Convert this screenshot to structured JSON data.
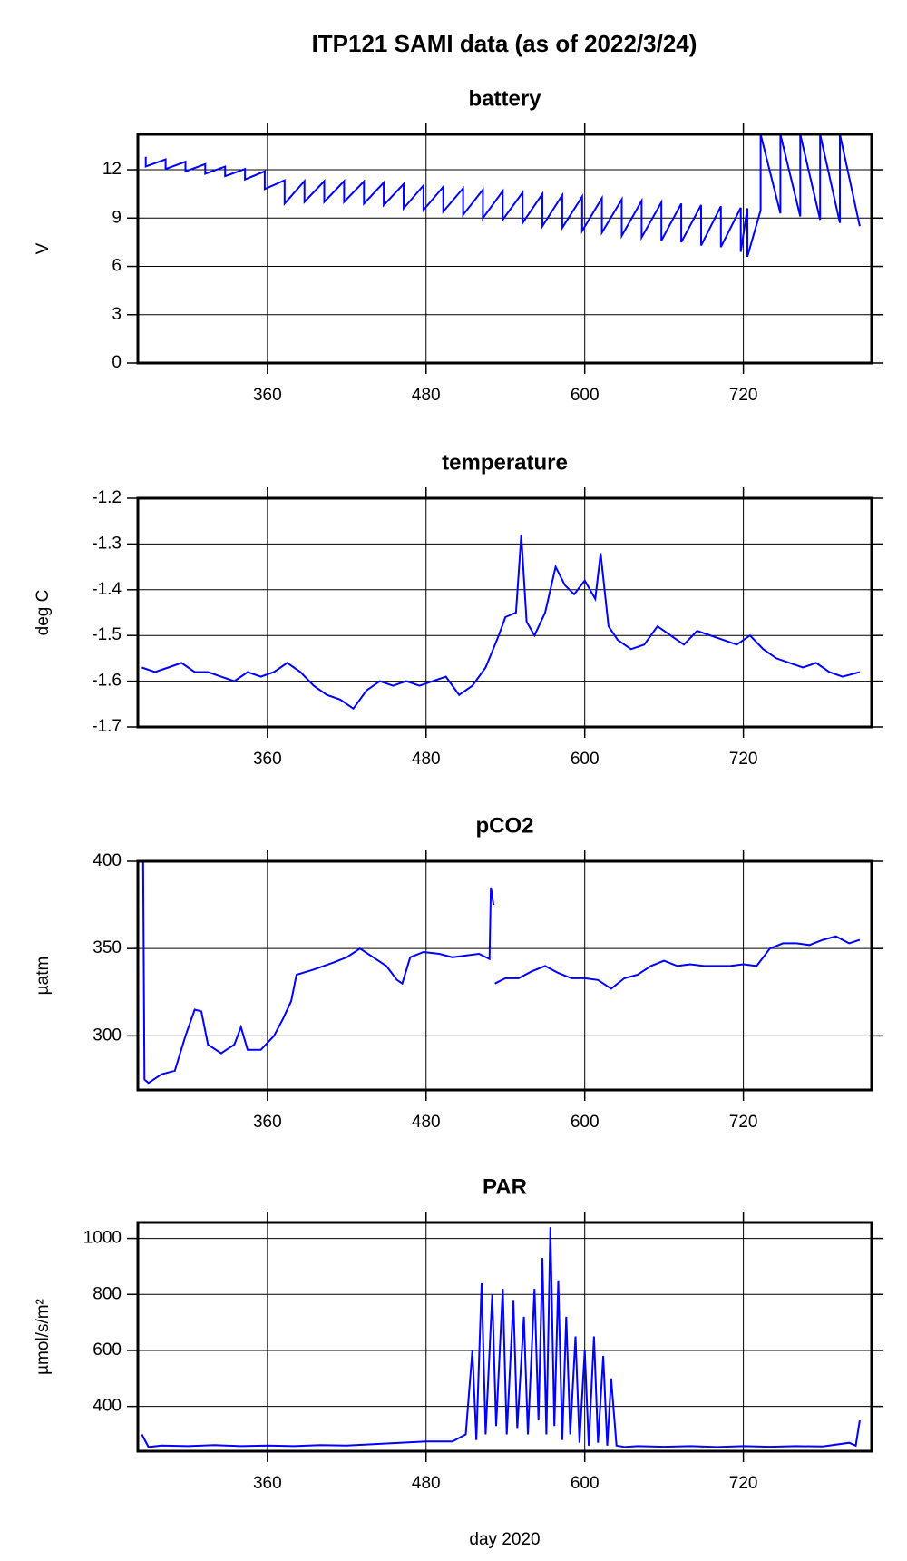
{
  "title": "ITP121 SAMI data (as of 2022/3/24)",
  "chart_data": [
    {
      "type": "line",
      "title": "battery",
      "ylabel": "V",
      "color": "#0000ff",
      "xlim": [
        262,
        817
      ],
      "xticks": [
        360,
        480,
        600,
        720
      ],
      "ylim": [
        0,
        14.2
      ],
      "yticks": [
        0,
        3,
        6,
        9,
        12
      ],
      "grid": true,
      "x": [
        268,
        268,
        283,
        283,
        298,
        298,
        313,
        313,
        328,
        328,
        343,
        343,
        358,
        358,
        373,
        373,
        388,
        388,
        403,
        403,
        418,
        418,
        433,
        433,
        448,
        448,
        463,
        463,
        478,
        478,
        493,
        493,
        508,
        508,
        523,
        523,
        538,
        538,
        553,
        553,
        568,
        568,
        583,
        583,
        598,
        598,
        613,
        613,
        628,
        628,
        643,
        643,
        658,
        658,
        673,
        673,
        688,
        688,
        703,
        703,
        718,
        718,
        723,
        723,
        733,
        733,
        748,
        748,
        763,
        763,
        778,
        778,
        793,
        793,
        808
      ],
      "values": [
        12.8,
        12.2,
        12.65,
        12.05,
        12.5,
        11.9,
        12.35,
        11.75,
        12.2,
        11.6,
        12.05,
        11.4,
        11.9,
        10.8,
        11.35,
        9.9,
        11.3,
        10.0,
        11.3,
        10.0,
        11.3,
        10.0,
        11.28,
        9.9,
        11.2,
        9.8,
        11.11,
        9.6,
        11.02,
        9.5,
        10.94,
        9.4,
        10.85,
        9.2,
        10.76,
        9.0,
        10.68,
        8.9,
        10.59,
        8.7,
        10.5,
        8.5,
        10.42,
        8.4,
        10.33,
        8.2,
        10.24,
        8.1,
        10.16,
        7.9,
        10.07,
        7.8,
        9.98,
        7.6,
        9.9,
        7.5,
        9.81,
        7.3,
        9.73,
        7.2,
        9.64,
        6.9,
        9.61,
        6.6,
        9.49,
        14.2,
        9.29,
        14.2,
        9.1,
        14.2,
        8.9,
        14.2,
        8.7,
        14.2,
        8.5
      ]
    },
    {
      "type": "line",
      "title": "temperature",
      "ylabel": "deg C",
      "color": "#0000ff",
      "xlim": [
        262,
        817
      ],
      "xticks": [
        360,
        480,
        600,
        720
      ],
      "ylim": [
        -1.7,
        -1.2
      ],
      "yticks": [
        -1.7,
        -1.6,
        -1.5,
        -1.4,
        -1.3,
        -1.2
      ],
      "grid": true,
      "x": [
        265,
        275,
        285,
        295,
        305,
        315,
        325,
        335,
        345,
        355,
        365,
        375,
        385,
        395,
        405,
        415,
        425,
        435,
        445,
        455,
        465,
        475,
        485,
        495,
        505,
        515,
        525,
        535,
        540,
        548,
        552,
        556,
        562,
        570,
        578,
        585,
        592,
        600,
        608,
        612,
        618,
        625,
        635,
        645,
        655,
        665,
        675,
        685,
        695,
        705,
        715,
        725,
        735,
        745,
        755,
        765,
        775,
        785,
        795,
        808
      ],
      "values": [
        -1.57,
        -1.58,
        -1.57,
        -1.56,
        -1.58,
        -1.58,
        -1.59,
        -1.6,
        -1.58,
        -1.59,
        -1.58,
        -1.56,
        -1.58,
        -1.61,
        -1.63,
        -1.64,
        -1.66,
        -1.62,
        -1.6,
        -1.61,
        -1.6,
        -1.61,
        -1.6,
        -1.59,
        -1.63,
        -1.61,
        -1.57,
        -1.5,
        -1.46,
        -1.45,
        -1.28,
        -1.47,
        -1.5,
        -1.45,
        -1.35,
        -1.39,
        -1.41,
        -1.38,
        -1.42,
        -1.32,
        -1.48,
        -1.51,
        -1.53,
        -1.52,
        -1.48,
        -1.5,
        -1.52,
        -1.49,
        -1.5,
        -1.51,
        -1.52,
        -1.5,
        -1.53,
        -1.55,
        -1.56,
        -1.57,
        -1.56,
        -1.58,
        -1.59,
        -1.58
      ]
    },
    {
      "type": "line",
      "title": "pCO2",
      "ylabel": "µatm",
      "color": "#0000ff",
      "xlim": [
        262,
        817
      ],
      "xticks": [
        360,
        480,
        600,
        720
      ],
      "ylim": [
        269,
        400
      ],
      "yticks": [
        300,
        350,
        400
      ],
      "grid": true,
      "x": [
        266,
        267,
        270,
        280,
        290,
        298,
        305,
        310,
        315,
        325,
        335,
        340,
        345,
        355,
        365,
        372,
        378,
        382,
        395,
        410,
        420,
        430,
        440,
        450,
        458,
        462,
        468,
        478,
        490,
        500,
        510,
        520,
        528,
        529,
        531,
        531.5,
        532,
        540,
        550,
        560,
        570,
        580,
        590,
        600,
        610,
        620,
        630,
        640,
        650,
        660,
        670,
        680,
        690,
        700,
        710,
        720,
        730,
        740,
        750,
        760,
        770,
        780,
        790,
        800,
        808
      ],
      "values": [
        400,
        275,
        273,
        278,
        280,
        300,
        315,
        314,
        295,
        290,
        295,
        305,
        292,
        292,
        300,
        310,
        320,
        335,
        338,
        342,
        345,
        350,
        345,
        340,
        332,
        330,
        345,
        348,
        347,
        345,
        346,
        347,
        344,
        385,
        375,
        null,
        330,
        333,
        333,
        337,
        340,
        336,
        333,
        333,
        332,
        327,
        333,
        335,
        340,
        343,
        340,
        341,
        340,
        340,
        340,
        341,
        340,
        350,
        353,
        353,
        352,
        355,
        357,
        353,
        355
      ]
    },
    {
      "type": "line",
      "title": "PAR",
      "ylabel": "µmol/s/m²",
      "xlabel": "day 2020",
      "color": "#0000ff",
      "xlim": [
        262,
        817
      ],
      "xticks": [
        360,
        480,
        600,
        720
      ],
      "ylim": [
        240,
        1057
      ],
      "yticks": [
        400,
        600,
        800,
        1000
      ],
      "grid": true,
      "x": [
        265,
        270,
        280,
        300,
        320,
        340,
        360,
        380,
        400,
        420,
        440,
        460,
        480,
        500,
        510,
        515,
        518,
        522,
        525,
        530,
        533,
        538,
        541,
        546,
        549,
        554,
        557,
        562,
        565,
        568,
        571,
        574,
        577,
        580,
        583,
        586,
        589,
        593,
        596,
        600,
        603,
        607,
        610,
        614,
        617,
        620,
        624,
        630,
        640,
        660,
        680,
        700,
        720,
        740,
        760,
        780,
        800,
        805,
        808
      ],
      "values": [
        300,
        255,
        260,
        258,
        262,
        258,
        260,
        258,
        262,
        260,
        265,
        270,
        275,
        275,
        300,
        600,
        280,
        840,
        300,
        800,
        330,
        820,
        300,
        780,
        320,
        720,
        300,
        820,
        350,
        930,
        300,
        1040,
        330,
        850,
        280,
        720,
        300,
        650,
        270,
        600,
        260,
        650,
        270,
        580,
        260,
        500,
        260,
        255,
        258,
        256,
        258,
        255,
        258,
        256,
        258,
        257,
        270,
        260,
        350
      ]
    }
  ]
}
